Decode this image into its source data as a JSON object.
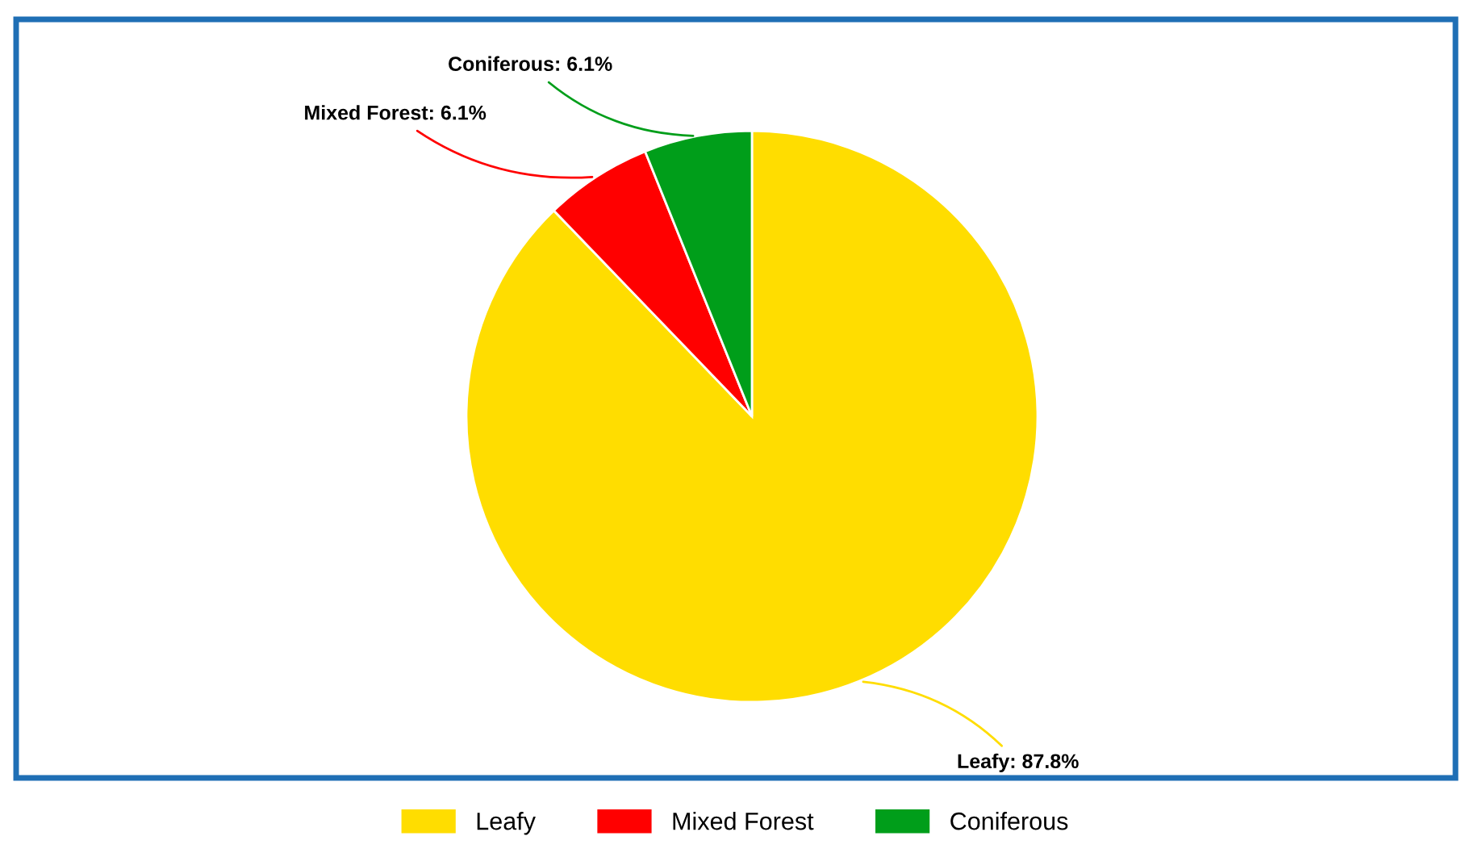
{
  "chart_data": {
    "type": "pie",
    "categories": [
      "Leafy",
      "Mixed Forest",
      "Coniferous"
    ],
    "values": [
      87.8,
      6.1,
      6.1
    ],
    "colors": [
      "#ffdd00",
      "#ff0000",
      "#009e1a"
    ],
    "value_labels": [
      "Leafy: 87.8%",
      "Mixed Forest: 6.1%",
      "Coniferous: 6.1%"
    ],
    "legend": "bottom"
  }
}
